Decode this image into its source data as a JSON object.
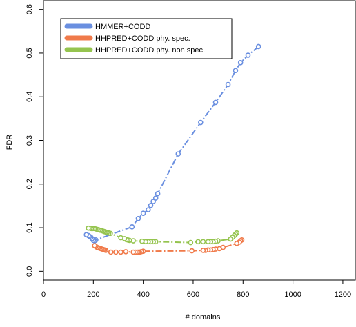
{
  "chart_data": {
    "type": "line",
    "xlabel": "# domains",
    "ylabel": "FDR",
    "xlim": [
      0,
      1250
    ],
    "ylim": [
      -0.02,
      0.62
    ],
    "xticks": [
      0,
      200,
      400,
      600,
      800,
      1000,
      1200
    ],
    "yticks": [
      0.0,
      0.1,
      0.2,
      0.3,
      0.4,
      0.5,
      0.6
    ],
    "grid": false,
    "legend_position": "top-left",
    "series": [
      {
        "name": "HMMER+CODD",
        "color": "#6a8fe0",
        "points": [
          [
            862,
            0.515
          ],
          [
            820,
            0.495
          ],
          [
            790,
            0.478
          ],
          [
            770,
            0.46
          ],
          [
            740,
            0.428
          ],
          [
            690,
            0.387
          ],
          [
            630,
            0.341
          ],
          [
            540,
            0.269
          ],
          [
            458,
            0.178
          ],
          [
            450,
            0.168
          ],
          [
            440,
            0.16
          ],
          [
            430,
            0.151
          ],
          [
            420,
            0.141
          ],
          [
            400,
            0.133
          ],
          [
            380,
            0.121
          ],
          [
            355,
            0.102
          ],
          [
            210,
            0.072
          ],
          [
            205,
            0.07
          ],
          [
            200,
            0.071
          ],
          [
            195,
            0.075
          ],
          [
            190,
            0.078
          ],
          [
            185,
            0.08
          ],
          [
            180,
            0.082
          ],
          [
            172,
            0.084
          ]
        ]
      },
      {
        "name": "HHPRED+CODD phy. spec.",
        "color": "#f07a4a",
        "points": [
          [
            795,
            0.072
          ],
          [
            790,
            0.07
          ],
          [
            785,
            0.067
          ],
          [
            775,
            0.064
          ],
          [
            720,
            0.055
          ],
          [
            705,
            0.052
          ],
          [
            690,
            0.051
          ],
          [
            680,
            0.05
          ],
          [
            670,
            0.049
          ],
          [
            660,
            0.049
          ],
          [
            650,
            0.048
          ],
          [
            640,
            0.048
          ],
          [
            595,
            0.047
          ],
          [
            400,
            0.046
          ],
          [
            392,
            0.045
          ],
          [
            385,
            0.044
          ],
          [
            380,
            0.044
          ],
          [
            375,
            0.044
          ],
          [
            368,
            0.044
          ],
          [
            360,
            0.044
          ],
          [
            330,
            0.045
          ],
          [
            310,
            0.044
          ],
          [
            290,
            0.044
          ],
          [
            270,
            0.044
          ],
          [
            250,
            0.048
          ],
          [
            245,
            0.049
          ],
          [
            240,
            0.05
          ],
          [
            235,
            0.051
          ],
          [
            230,
            0.052
          ],
          [
            225,
            0.053
          ],
          [
            220,
            0.054
          ],
          [
            215,
            0.055
          ],
          [
            210,
            0.057
          ],
          [
            205,
            0.059
          ]
        ]
      },
      {
        "name": "HHPRED+CODD phy. non spec.",
        "color": "#95c44f",
        "points": [
          [
            775,
            0.088
          ],
          [
            770,
            0.085
          ],
          [
            765,
            0.082
          ],
          [
            758,
            0.078
          ],
          [
            750,
            0.074
          ],
          [
            700,
            0.07
          ],
          [
            690,
            0.069
          ],
          [
            680,
            0.068
          ],
          [
            670,
            0.068
          ],
          [
            660,
            0.068
          ],
          [
            640,
            0.068
          ],
          [
            620,
            0.068
          ],
          [
            590,
            0.066
          ],
          [
            450,
            0.068
          ],
          [
            440,
            0.068
          ],
          [
            430,
            0.068
          ],
          [
            420,
            0.068
          ],
          [
            410,
            0.068
          ],
          [
            395,
            0.069
          ],
          [
            360,
            0.07
          ],
          [
            345,
            0.071
          ],
          [
            338,
            0.072
          ],
          [
            332,
            0.073
          ],
          [
            325,
            0.075
          ],
          [
            310,
            0.077
          ],
          [
            268,
            0.087
          ],
          [
            262,
            0.088
          ],
          [
            255,
            0.089
          ],
          [
            250,
            0.09
          ],
          [
            245,
            0.091
          ],
          [
            240,
            0.092
          ],
          [
            235,
            0.093
          ],
          [
            228,
            0.094
          ],
          [
            222,
            0.095
          ],
          [
            216,
            0.096
          ],
          [
            210,
            0.097
          ],
          [
            204,
            0.098
          ],
          [
            198,
            0.098
          ],
          [
            192,
            0.098
          ],
          [
            186,
            0.099
          ],
          [
            180,
            0.099
          ]
        ]
      }
    ]
  }
}
